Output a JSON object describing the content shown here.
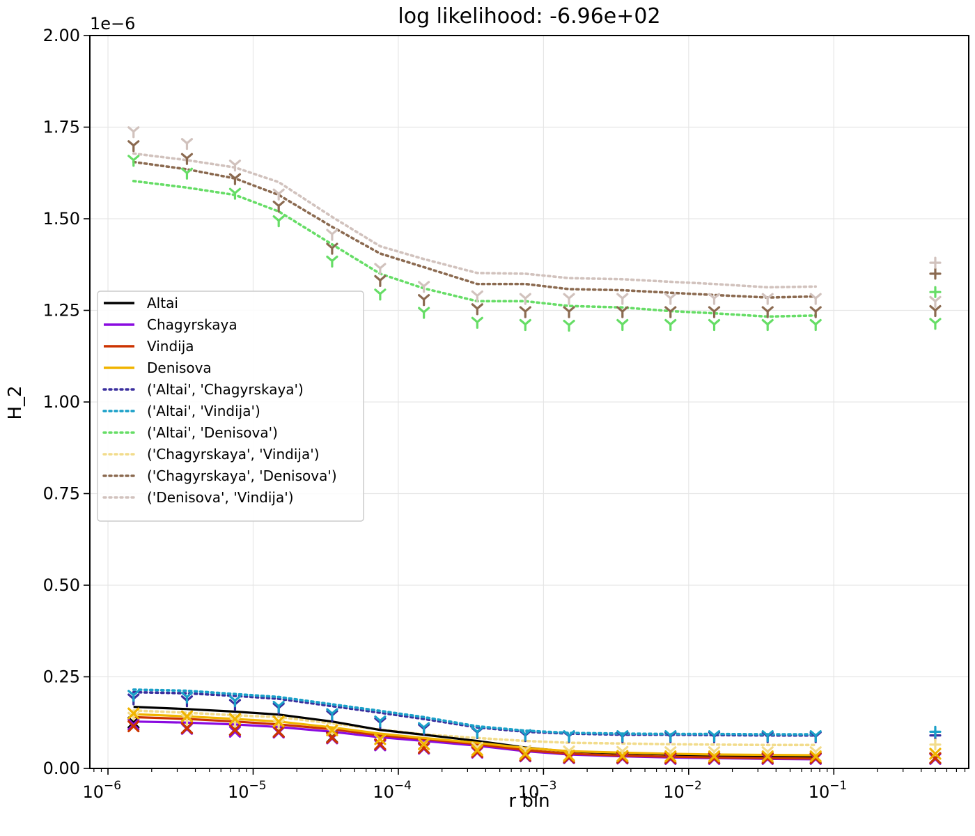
{
  "chart_data": {
    "type": "line",
    "title": "log likelihood: -6.96e+02",
    "xlabel": "r bin",
    "ylabel": "H_2",
    "x_scale": "log",
    "y_scale_label": "1e−6",
    "xlim": [
      7.5e-07,
      0.85
    ],
    "ylim": [
      0,
      2e-06
    ],
    "grid": true,
    "legend_position": "center-left",
    "y_ticks": [
      {
        "value": 0.0,
        "label": "0.00"
      },
      {
        "value": 2.5e-07,
        "label": "0.25"
      },
      {
        "value": 5e-07,
        "label": "0.50"
      },
      {
        "value": 7.5e-07,
        "label": "0.75"
      },
      {
        "value": 1e-06,
        "label": "1.00"
      },
      {
        "value": 1.25e-06,
        "label": "1.25"
      },
      {
        "value": 1.5e-06,
        "label": "1.50"
      },
      {
        "value": 1.75e-06,
        "label": "1.75"
      },
      {
        "value": 2e-06,
        "label": "2.00"
      }
    ],
    "x_ticks": [
      {
        "value": 1e-06,
        "base": "10",
        "exp": "−6"
      },
      {
        "value": 1e-05,
        "base": "10",
        "exp": "−5"
      },
      {
        "value": 0.0001,
        "base": "10",
        "exp": "−4"
      },
      {
        "value": 0.001,
        "base": "10",
        "exp": "−3"
      },
      {
        "value": 0.01,
        "base": "10",
        "exp": "−2"
      },
      {
        "value": 0.1,
        "base": "10",
        "exp": "−1"
      }
    ],
    "x": [
      1.5e-06,
      3.5e-06,
      7.5e-06,
      1.5e-05,
      3.5e-05,
      7.5e-05,
      0.00015,
      0.00035,
      0.00075,
      0.0015,
      0.0035,
      0.0075,
      0.015,
      0.035,
      0.075
    ],
    "extra_x": 0.5,
    "series": [
      {
        "name": "Altai",
        "color": "#000000",
        "style": "solid",
        "values": [
          0.168,
          0.162,
          0.155,
          0.147,
          0.128,
          0.105,
          0.092,
          0.075,
          0.057,
          0.046,
          0.041,
          0.038,
          0.035,
          0.033,
          0.032
        ],
        "marker": "x",
        "marker_color": "#000000",
        "points": [
          0.125,
          0.11,
          0.105,
          0.1,
          0.085,
          0.065,
          0.055,
          0.045,
          0.035,
          0.03,
          0.03,
          0.028,
          0.028,
          0.028,
          0.028
        ],
        "extra": 0.028
      },
      {
        "name": "Chagyrskaya",
        "color": "#8a0be0",
        "style": "solid",
        "values": [
          0.128,
          0.125,
          0.12,
          0.113,
          0.1,
          0.085,
          0.075,
          0.062,
          0.047,
          0.038,
          0.033,
          0.03,
          0.028,
          0.026,
          0.025
        ],
        "marker": "x",
        "marker_color": "#8a0be0",
        "points": [
          0.12,
          0.108,
          0.1,
          0.098,
          0.082,
          0.063,
          0.054,
          0.043,
          0.033,
          0.028,
          0.027,
          0.026,
          0.026,
          0.026,
          0.026
        ],
        "extra": 0.026
      },
      {
        "name": "Vindija",
        "color": "#cc3300",
        "style": "solid",
        "values": [
          0.14,
          0.135,
          0.128,
          0.12,
          0.107,
          0.09,
          0.08,
          0.066,
          0.05,
          0.04,
          0.035,
          0.032,
          0.03,
          0.028,
          0.027
        ],
        "marker": "x",
        "marker_color": "#cc3300",
        "points": [
          0.115,
          0.11,
          0.105,
          0.1,
          0.084,
          0.066,
          0.056,
          0.045,
          0.035,
          0.03,
          0.029,
          0.028,
          0.028,
          0.028,
          0.028
        ],
        "extra": 0.028
      },
      {
        "name": "Denisova",
        "color": "#f0b400",
        "style": "solid",
        "values": [
          0.148,
          0.142,
          0.135,
          0.128,
          0.112,
          0.095,
          0.083,
          0.07,
          0.056,
          0.047,
          0.043,
          0.04,
          0.038,
          0.037,
          0.036
        ],
        "marker": "x",
        "marker_color": "#f0b400",
        "points": [
          0.15,
          0.142,
          0.135,
          0.128,
          0.104,
          0.08,
          0.066,
          0.05,
          0.04,
          0.035,
          0.034,
          0.033,
          0.033,
          0.033,
          0.033
        ],
        "extra": 0.04
      },
      {
        "name": "('Altai', 'Chagyrskaya')",
        "color": "#3a2f9e",
        "style": "dotted",
        "values": [
          0.208,
          0.205,
          0.198,
          0.19,
          0.17,
          0.152,
          0.135,
          0.112,
          0.1,
          0.095,
          0.092,
          0.092,
          0.091,
          0.09,
          0.09
        ],
        "marker": "tri",
        "marker_color": "#3a2f9e",
        "points": [
          0.19,
          0.185,
          0.175,
          0.165,
          0.145,
          0.125,
          0.108,
          0.098,
          0.09,
          0.088,
          0.087,
          0.087,
          0.087,
          0.087,
          0.087
        ],
        "extra": 0.09
      },
      {
        "name": "('Altai', 'Vindija')",
        "color": "#1aa0c8",
        "style": "dotted",
        "values": [
          0.215,
          0.212,
          0.203,
          0.195,
          0.175,
          0.157,
          0.14,
          0.115,
          0.103,
          0.097,
          0.095,
          0.094,
          0.094,
          0.093,
          0.093
        ],
        "marker": "tri",
        "marker_color": "#1aa0c8",
        "points": [
          0.2,
          0.195,
          0.185,
          0.17,
          0.15,
          0.13,
          0.112,
          0.1,
          0.093,
          0.09,
          0.09,
          0.09,
          0.09,
          0.09,
          0.09
        ],
        "extra": 0.1
      },
      {
        "name": "('Altai', 'Denisova')",
        "color": "#66dd66",
        "style": "dotted",
        "values": [
          1.603,
          1.585,
          1.565,
          1.52,
          1.43,
          1.35,
          1.31,
          1.275,
          1.275,
          1.262,
          1.258,
          1.248,
          1.242,
          1.233,
          1.236
        ],
        "marker": "tri",
        "marker_color": "#66dd66",
        "points": [
          1.66,
          1.625,
          1.57,
          1.495,
          1.385,
          1.295,
          1.245,
          1.218,
          1.212,
          1.21,
          1.212,
          1.212,
          1.212,
          1.212,
          1.212
        ],
        "extra": 1.3
      },
      {
        "name": "('Chagyrskaya', 'Vindija')",
        "color": "#f2dc8c",
        "style": "dotted",
        "values": [
          0.158,
          0.152,
          0.145,
          0.14,
          0.123,
          0.106,
          0.093,
          0.083,
          0.075,
          0.07,
          0.068,
          0.066,
          0.065,
          0.064,
          0.064
        ],
        "marker": "tri",
        "marker_color": "#f2dc8c",
        "points": [
          0.14,
          0.135,
          0.128,
          0.12,
          0.1,
          0.08,
          0.068,
          0.058,
          0.05,
          0.048,
          0.047,
          0.046,
          0.046,
          0.046,
          0.046
        ],
        "extra": 0.065
      },
      {
        "name": "('Chagyrskaya', 'Denisova')",
        "color": "#8b6a50",
        "style": "dotted",
        "values": [
          1.655,
          1.635,
          1.61,
          1.565,
          1.478,
          1.405,
          1.368,
          1.322,
          1.322,
          1.308,
          1.305,
          1.298,
          1.292,
          1.285,
          1.288
        ],
        "marker": "tri",
        "marker_color": "#8b6a50",
        "points": [
          1.7,
          1.665,
          1.61,
          1.535,
          1.42,
          1.332,
          1.28,
          1.255,
          1.247,
          1.247,
          1.247,
          1.247,
          1.247,
          1.247,
          1.247
        ],
        "extra": 1.35
      },
      {
        "name": "('Denisova', 'Vindija')",
        "color": "#d1c2bd",
        "style": "dotted",
        "values": [
          1.678,
          1.66,
          1.64,
          1.6,
          1.505,
          1.425,
          1.39,
          1.352,
          1.35,
          1.338,
          1.335,
          1.328,
          1.322,
          1.313,
          1.315
        ],
        "marker": "tri",
        "marker_color": "#d1c2bd",
        "points": [
          1.738,
          1.706,
          1.647,
          1.568,
          1.458,
          1.365,
          1.316,
          1.29,
          1.283,
          1.283,
          1.283,
          1.283,
          1.283,
          1.283,
          1.283
        ],
        "extra": 1.38
      }
    ]
  }
}
